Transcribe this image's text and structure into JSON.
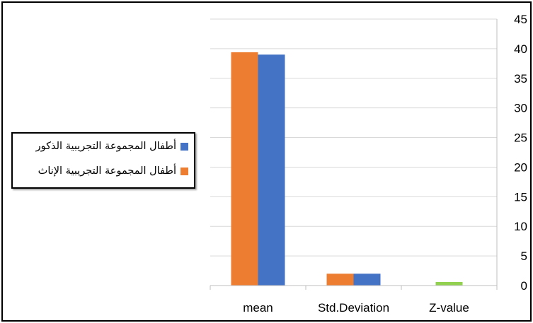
{
  "chart_data": {
    "type": "bar",
    "categories": [
      "mean",
      "Std.Deviation",
      "Z-value"
    ],
    "series": [
      {
        "name": "أطفال المجموعة التجريبية الإناث",
        "color": "#ED7D31",
        "values": [
          39.4,
          2,
          0
        ]
      },
      {
        "name": "أطفال المجموعة التجريبية الذكور",
        "color": "#4472C4",
        "values": [
          39,
          2,
          0
        ]
      },
      {
        "name": "",
        "color": "#92D050",
        "values": [
          null,
          null,
          0.6
        ]
      }
    ],
    "y_axis": {
      "min": 0,
      "max": 45,
      "step": 5,
      "position": "right",
      "ticks": [
        "0",
        "5",
        "10",
        "15",
        "20",
        "25",
        "30",
        "35",
        "40",
        "45"
      ]
    },
    "grid": true,
    "legend": {
      "placement": "left",
      "entries": [
        {
          "label": "أطفال المجموعة التجريبية الذكور",
          "color": "#4472C4"
        },
        {
          "label": "أطفال المجموعة التجريبية الإناث",
          "color": "#ED7D31"
        }
      ]
    }
  }
}
